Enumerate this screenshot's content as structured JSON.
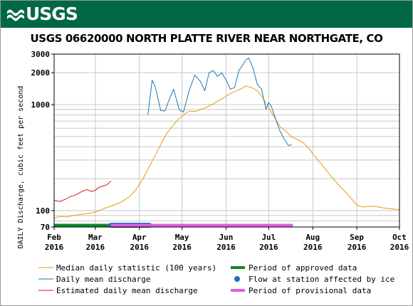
{
  "banner": {
    "logo_text": "USGS",
    "logo_icon": "usgs-wave-icon"
  },
  "colors": {
    "banner": "#006747",
    "median": "#e69a17",
    "daily_mean": "#1f77b4",
    "estimated": "#cc1f1f",
    "approved_bar": "#0b8a2b",
    "provisional_bar": "#e15ce1",
    "ice_bar": "#1d6fc4",
    "grid": "#c8c8c8"
  },
  "chart_data": {
    "type": "line",
    "title": "USGS 06620000 NORTH PLATTE RIVER NEAR NORTHGATE, CO",
    "ylabel": "DAILY Discharge, cubic feet per second",
    "xlabel": "",
    "y_scale": "log",
    "ylim": [
      70,
      3000
    ],
    "xlim": [
      "2016-02-01",
      "2016-10-01"
    ],
    "y_ticks": [
      70,
      100,
      1000,
      2000,
      3000
    ],
    "y_gridlines": [
      70,
      80,
      90,
      100,
      200,
      300,
      400,
      500,
      600,
      700,
      800,
      900,
      1000,
      2000,
      3000
    ],
    "x_ticks": [
      {
        "date": "2016-02-01",
        "label": [
          "Feb",
          "2016"
        ]
      },
      {
        "date": "2016-03-01",
        "label": [
          "Mar",
          "2016"
        ]
      },
      {
        "date": "2016-04-01",
        "label": [
          "Apr",
          "2016"
        ]
      },
      {
        "date": "2016-05-01",
        "label": [
          "May",
          "2016"
        ]
      },
      {
        "date": "2016-06-01",
        "label": [
          "Jun",
          "2016"
        ]
      },
      {
        "date": "2016-07-01",
        "label": [
          "Jul",
          "2016"
        ]
      },
      {
        "date": "2016-08-01",
        "label": [
          "Aug",
          "2016"
        ]
      },
      {
        "date": "2016-09-01",
        "label": [
          "Sep",
          "2016"
        ]
      },
      {
        "date": "2016-10-01",
        "label": [
          "Oct",
          "2016"
        ]
      }
    ],
    "series": [
      {
        "name": "Median daily statistic (100 years)",
        "key": "median",
        "points": [
          [
            "2016-02-01",
            85
          ],
          [
            "2016-02-05",
            88
          ],
          [
            "2016-02-10",
            87
          ],
          [
            "2016-02-15",
            90
          ],
          [
            "2016-02-20",
            92
          ],
          [
            "2016-02-25",
            94
          ],
          [
            "2016-03-01",
            97
          ],
          [
            "2016-03-05",
            102
          ],
          [
            "2016-03-10",
            108
          ],
          [
            "2016-03-15",
            114
          ],
          [
            "2016-03-20",
            122
          ],
          [
            "2016-03-25",
            135
          ],
          [
            "2016-03-30",
            160
          ],
          [
            "2016-04-04",
            205
          ],
          [
            "2016-04-08",
            260
          ],
          [
            "2016-04-12",
            330
          ],
          [
            "2016-04-16",
            420
          ],
          [
            "2016-04-20",
            530
          ],
          [
            "2016-04-24",
            620
          ],
          [
            "2016-04-28",
            720
          ],
          [
            "2016-05-02",
            800
          ],
          [
            "2016-05-06",
            870
          ],
          [
            "2016-05-10",
            860
          ],
          [
            "2016-05-14",
            900
          ],
          [
            "2016-05-18",
            940
          ],
          [
            "2016-05-22",
            1000
          ],
          [
            "2016-05-26",
            1080
          ],
          [
            "2016-05-30",
            1150
          ],
          [
            "2016-06-03",
            1250
          ],
          [
            "2016-06-07",
            1330
          ],
          [
            "2016-06-11",
            1400
          ],
          [
            "2016-06-15",
            1500
          ],
          [
            "2016-06-19",
            1450
          ],
          [
            "2016-06-23",
            1350
          ],
          [
            "2016-06-27",
            1150
          ],
          [
            "2016-07-01",
            930
          ],
          [
            "2016-07-05",
            760
          ],
          [
            "2016-07-09",
            620
          ],
          [
            "2016-07-13",
            560
          ],
          [
            "2016-07-17",
            500
          ],
          [
            "2016-07-21",
            470
          ],
          [
            "2016-07-25",
            440
          ],
          [
            "2016-07-29",
            390
          ],
          [
            "2016-08-02",
            330
          ],
          [
            "2016-08-08",
            265
          ],
          [
            "2016-08-14",
            210
          ],
          [
            "2016-08-20",
            170
          ],
          [
            "2016-08-26",
            140
          ],
          [
            "2016-09-01",
            113
          ],
          [
            "2016-09-05",
            108
          ],
          [
            "2016-09-10",
            110
          ],
          [
            "2016-09-15",
            109
          ],
          [
            "2016-09-20",
            106
          ],
          [
            "2016-09-25",
            104
          ],
          [
            "2016-10-01",
            102
          ]
        ]
      },
      {
        "name": "Daily mean discharge",
        "key": "daily_mean",
        "points": [
          [
            "2016-04-07",
            800
          ],
          [
            "2016-04-10",
            1700
          ],
          [
            "2016-04-12",
            1500
          ],
          [
            "2016-04-14",
            1150
          ],
          [
            "2016-04-16",
            880
          ],
          [
            "2016-04-19",
            870
          ],
          [
            "2016-04-22",
            1120
          ],
          [
            "2016-04-25",
            1400
          ],
          [
            "2016-04-27",
            1130
          ],
          [
            "2016-04-29",
            900
          ],
          [
            "2016-05-02",
            850
          ],
          [
            "2016-05-06",
            1350
          ],
          [
            "2016-05-10",
            1900
          ],
          [
            "2016-05-14",
            1650
          ],
          [
            "2016-05-17",
            1350
          ],
          [
            "2016-05-20",
            2000
          ],
          [
            "2016-05-23",
            2100
          ],
          [
            "2016-05-26",
            1850
          ],
          [
            "2016-05-29",
            2000
          ],
          [
            "2016-06-01",
            1700
          ],
          [
            "2016-06-04",
            1400
          ],
          [
            "2016-06-07",
            1450
          ],
          [
            "2016-06-10",
            2100
          ],
          [
            "2016-06-13",
            2400
          ],
          [
            "2016-06-15",
            2650
          ],
          [
            "2016-06-17",
            2750
          ],
          [
            "2016-06-20",
            2200
          ],
          [
            "2016-06-23",
            1550
          ],
          [
            "2016-06-26",
            1400
          ],
          [
            "2016-06-29",
            900
          ],
          [
            "2016-07-01",
            1050
          ],
          [
            "2016-07-03",
            950
          ],
          [
            "2016-07-06",
            720
          ],
          [
            "2016-07-09",
            560
          ],
          [
            "2016-07-12",
            470
          ],
          [
            "2016-07-15",
            410
          ],
          [
            "2016-07-17",
            420
          ]
        ]
      },
      {
        "name": "Estimated daily mean discharge",
        "key": "estimated",
        "points": [
          [
            "2016-02-01",
            125
          ],
          [
            "2016-02-05",
            122
          ],
          [
            "2016-02-09",
            128
          ],
          [
            "2016-02-12",
            135
          ],
          [
            "2016-02-16",
            140
          ],
          [
            "2016-02-20",
            150
          ],
          [
            "2016-02-24",
            158
          ],
          [
            "2016-02-27",
            152
          ],
          [
            "2016-03-01",
            155
          ],
          [
            "2016-03-03",
            165
          ],
          [
            "2016-03-06",
            170
          ],
          [
            "2016-03-09",
            175
          ],
          [
            "2016-03-12",
            190
          ]
        ]
      }
    ],
    "period_bars": [
      {
        "name": "Period of approved data",
        "key": "approved_bar",
        "start": "2016-02-01",
        "end": "2016-03-12"
      },
      {
        "name": "Flow at station affected by ice",
        "key": "ice_bar",
        "start": "2016-03-12",
        "end": "2016-04-08"
      },
      {
        "name": "Period of provisional data",
        "key": "provisional_bar",
        "start": "2016-03-12",
        "end": "2016-07-18"
      }
    ]
  }
}
